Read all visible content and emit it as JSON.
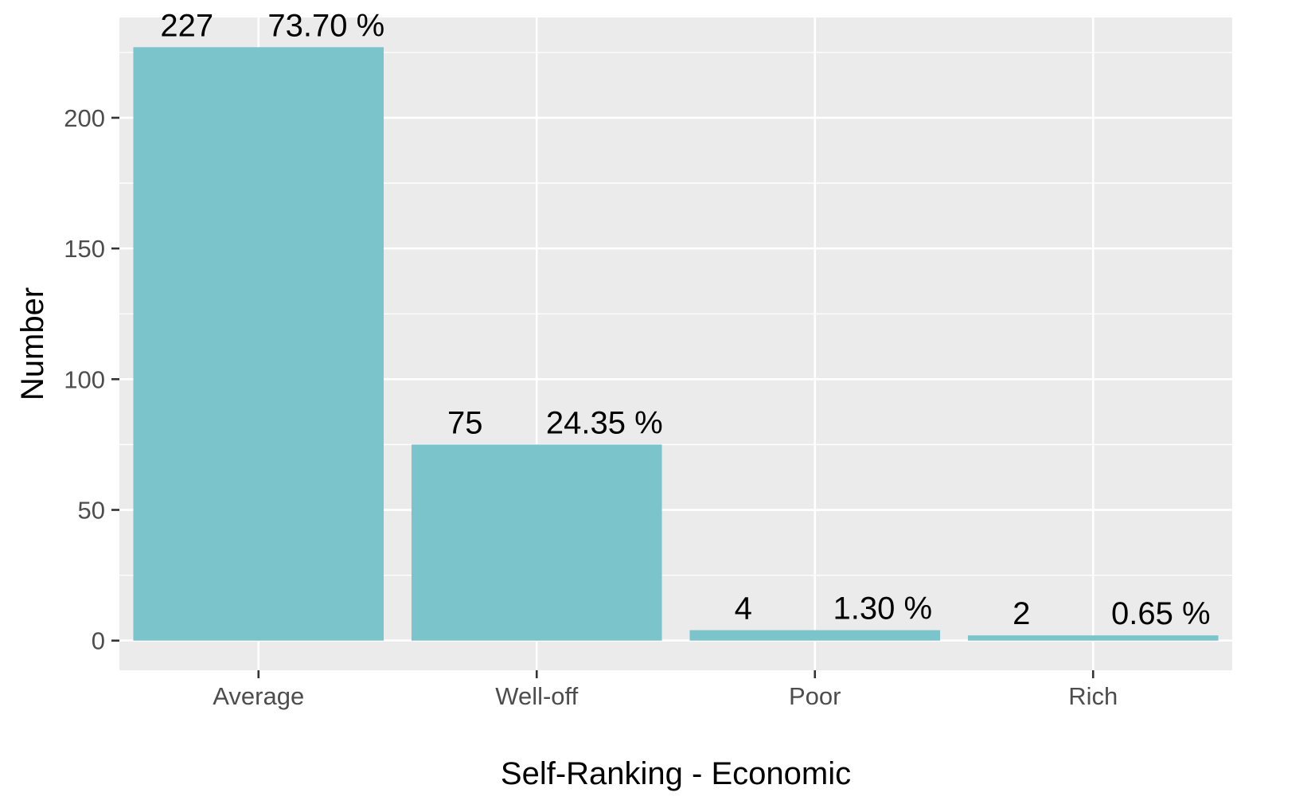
{
  "chart_data": {
    "type": "bar",
    "categories": [
      "Average",
      "Well-off",
      "Poor",
      "Rich"
    ],
    "values": [
      227,
      75,
      4,
      2
    ],
    "count_labels": [
      "227",
      "75",
      "4",
      "2"
    ],
    "percent_labels": [
      "73.70 %",
      "24.35 %",
      "1.30 %",
      "0.65 %"
    ],
    "xlabel": "Self-Ranking - Economic",
    "ylabel": "Number",
    "ylim": [
      -11.35,
      238.35
    ],
    "yticks": [
      0,
      50,
      100,
      150,
      200
    ],
    "ytick_labels": [
      "0",
      "50",
      "100",
      "150",
      "200"
    ],
    "grid": true,
    "legend": "none",
    "colors": {
      "bar": "#7CC4CC",
      "panel": "#EBEBEB",
      "grid": "#FFFFFF",
      "tick_text": "#4D4D4D",
      "tick_mark": "#333333"
    }
  }
}
